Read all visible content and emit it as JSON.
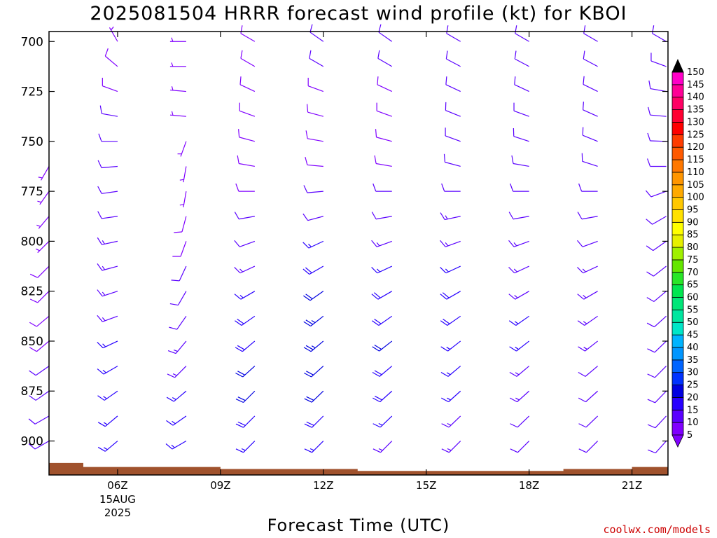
{
  "title": "2025081504 HRRR forecast wind profile (kt) for KBOI",
  "xlabel": "Forecast Time (UTC)",
  "credit": "coolwx.com/models",
  "chart_data": {
    "type": "wind-barbs",
    "units": "kt",
    "y_axis": {
      "label": "",
      "ticks": [
        700,
        725,
        750,
        775,
        800,
        825,
        850,
        875,
        900
      ],
      "range": [
        695,
        917
      ],
      "inverted": true
    },
    "x_axis": {
      "ticks": [
        {
          "hour": 6,
          "label": "06Z",
          "sublabels": [
            "15AUG",
            "2025"
          ]
        },
        {
          "hour": 9,
          "label": "09Z",
          "sublabels": []
        },
        {
          "hour": 12,
          "label": "12Z",
          "sublabels": []
        },
        {
          "hour": 15,
          "label": "15Z",
          "sublabels": []
        },
        {
          "hour": 18,
          "label": "18Z",
          "sublabels": []
        },
        {
          "hour": 21,
          "label": "21Z",
          "sublabels": []
        }
      ],
      "range": [
        4.0,
        22.05
      ]
    },
    "levels": [
      700,
      712.5,
      725,
      737.5,
      750,
      762.5,
      775,
      787.5,
      800,
      812.5,
      825,
      837.5,
      850,
      862.5,
      875,
      887.5,
      900
    ],
    "profiles": [
      {
        "hour": 4,
        "sfc_p": 911,
        "dir": [
          null,
          null,
          null,
          null,
          null,
          210,
          215,
          220,
          225,
          225,
          225,
          230,
          230,
          235,
          235,
          240,
          240
        ],
        "spd": [
          null,
          null,
          null,
          null,
          null,
          5,
          6,
          6,
          7,
          8,
          8,
          9,
          9,
          10,
          10,
          11,
          11
        ]
      },
      {
        "hour": 6,
        "sfc_p": 913,
        "dir": [
          330,
          310,
          290,
          280,
          270,
          265,
          262,
          262,
          258,
          255,
          252,
          250,
          245,
          240,
          235,
          230,
          230
        ],
        "spd": [
          7,
          8,
          9,
          10,
          10,
          11,
          12,
          12,
          13,
          13,
          14,
          14,
          15,
          15,
          16,
          16,
          15
        ]
      },
      {
        "hour": 8,
        "sfc_p": 913,
        "dir": [
          270,
          270,
          275,
          275,
          200,
          190,
          190,
          195,
          200,
          205,
          210,
          215,
          220,
          225,
          230,
          235,
          240
        ],
        "spd": [
          6,
          6,
          7,
          6,
          5,
          6,
          7,
          8,
          9,
          10,
          11,
          12,
          13,
          14,
          15,
          16,
          16
        ]
      },
      {
        "hour": 10,
        "sfc_p": 914,
        "dir": [
          300,
          300,
          295,
          290,
          285,
          280,
          270,
          260,
          250,
          245,
          240,
          235,
          230,
          228,
          225,
          225,
          225
        ],
        "spd": [
          9,
          9,
          8,
          8,
          8,
          8,
          9,
          10,
          12,
          14,
          16,
          18,
          19,
          20,
          20,
          18,
          16
        ]
      },
      {
        "hour": 12,
        "sfc_p": 914,
        "dir": [
          305,
          300,
          290,
          285,
          280,
          275,
          265,
          255,
          245,
          240,
          235,
          232,
          230,
          228,
          226,
          225,
          225
        ],
        "spd": [
          10,
          10,
          9,
          9,
          8,
          8,
          10,
          12,
          15,
          18,
          21,
          23,
          23,
          22,
          20,
          18,
          16
        ]
      },
      {
        "hour": 14,
        "sfc_p": 915,
        "dir": [
          305,
          300,
          295,
          290,
          285,
          280,
          270,
          260,
          250,
          245,
          240,
          235,
          232,
          230,
          228,
          226,
          225
        ],
        "spd": [
          10,
          10,
          9,
          9,
          9,
          9,
          10,
          12,
          14,
          16,
          18,
          19,
          20,
          19,
          18,
          16,
          14
        ]
      },
      {
        "hour": 16,
        "sfc_p": 915,
        "dir": [
          300,
          298,
          295,
          292,
          290,
          285,
          270,
          258,
          250,
          245,
          240,
          235,
          232,
          230,
          228,
          226,
          225
        ],
        "spd": [
          10,
          11,
          11,
          11,
          11,
          11,
          12,
          13,
          14,
          16,
          18,
          18,
          17,
          16,
          15,
          14,
          13
        ]
      },
      {
        "hour": 18,
        "sfc_p": 915,
        "dir": [
          300,
          298,
          295,
          290,
          288,
          280,
          270,
          260,
          250,
          245,
          240,
          235,
          232,
          230,
          228,
          226,
          225
        ],
        "spd": [
          10,
          10,
          10,
          10,
          10,
          10,
          11,
          12,
          13,
          14,
          14,
          15,
          15,
          14,
          13,
          12,
          11
        ]
      },
      {
        "hour": 20,
        "sfc_p": 914,
        "dir": [
          300,
          298,
          296,
          294,
          292,
          288,
          270,
          260,
          250,
          245,
          240,
          235,
          232,
          230,
          228,
          226,
          225
        ],
        "spd": [
          12,
          11,
          11,
          11,
          11,
          10,
          10,
          11,
          12,
          13,
          13,
          13,
          13,
          12,
          12,
          11,
          10
        ]
      },
      {
        "hour": 22,
        "sfc_p": 913,
        "dir": [
          300,
          290,
          280,
          275,
          272,
          270,
          250,
          240,
          235,
          232,
          230,
          228,
          226,
          225,
          224,
          223,
          222
        ],
        "spd": [
          12,
          11,
          10,
          10,
          10,
          10,
          10,
          11,
          11,
          11,
          11,
          11,
          11,
          11,
          10,
          10,
          10
        ]
      }
    ],
    "colorbar": {
      "labels": [
        5,
        10,
        15,
        20,
        25,
        30,
        35,
        40,
        45,
        50,
        55,
        60,
        65,
        70,
        75,
        80,
        85,
        90,
        95,
        100,
        105,
        110,
        115,
        120,
        125,
        130,
        135,
        140,
        145,
        150
      ],
      "colors": [
        "#8000ff",
        "#5a00ff",
        "#2800ff",
        "#0000e0",
        "#0032ff",
        "#0064ff",
        "#0096ff",
        "#00b4ff",
        "#00e6c8",
        "#00e6a0",
        "#00e678",
        "#00e650",
        "#28e628",
        "#64e600",
        "#a0f000",
        "#e6f000",
        "#ffff00",
        "#ffe100",
        "#ffc800",
        "#ffaa00",
        "#ff9600",
        "#ff7800",
        "#ff5a00",
        "#ff3c00",
        "#ff0000",
        "#ff0032",
        "#ff0064",
        "#ff0096",
        "#ff00c8",
        "#ff00ff"
      ],
      "top_cap_color": "#000000"
    },
    "terrain_color": "#a0522d"
  }
}
